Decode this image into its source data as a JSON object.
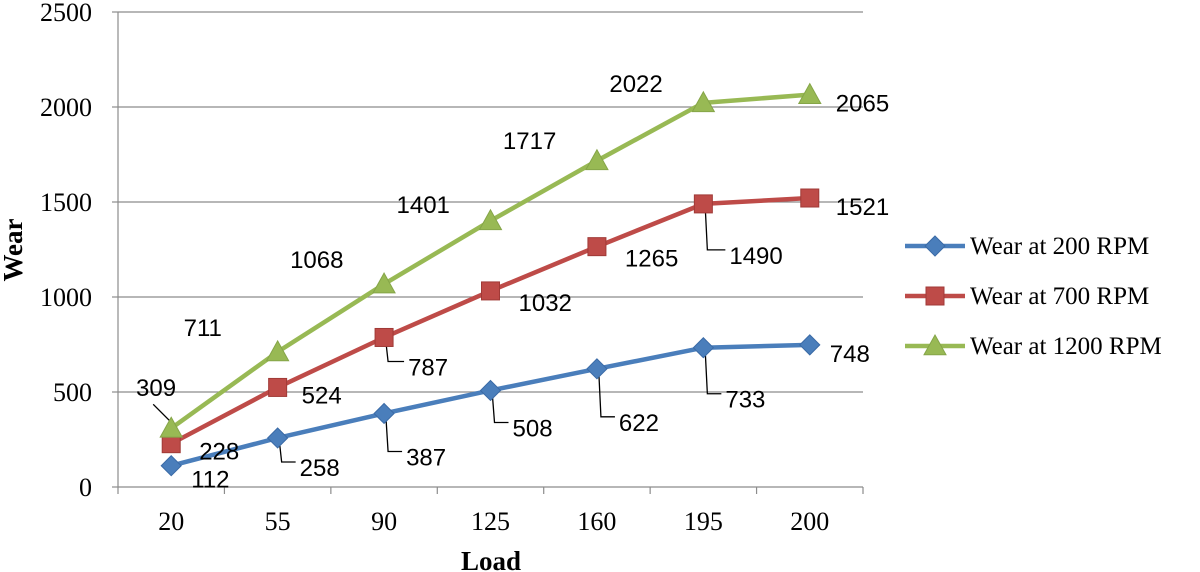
{
  "chart_data": {
    "type": "line",
    "title": "",
    "xlabel": "Load",
    "ylabel": "Wear",
    "categories": [
      "20",
      "55",
      "90",
      "125",
      "160",
      "195",
      "200"
    ],
    "ylim": [
      0,
      2500
    ],
    "yticks": [
      "0",
      "500",
      "1000",
      "1500",
      "2000",
      "2500"
    ],
    "grid": "horizontal",
    "legend_position": "right",
    "series": [
      {
        "name": "Wear at 200 RPM",
        "color": "#4a7ebb",
        "marker": "diamond",
        "values": [
          112,
          258,
          387,
          508,
          622,
          733,
          748
        ],
        "labels": [
          "112",
          "258",
          "387",
          "508",
          "622",
          "733",
          "748"
        ]
      },
      {
        "name": "Wear at 700 RPM",
        "color": "#be4b48",
        "marker": "square",
        "values": [
          228,
          524,
          787,
          1032,
          1265,
          1490,
          1521
        ],
        "labels": [
          "228",
          "524",
          "787",
          "1032",
          "1265",
          "1490",
          "1521"
        ]
      },
      {
        "name": "Wear at 1200 RPM",
        "color": "#98b954",
        "marker": "triangle",
        "values": [
          309,
          711,
          1068,
          1401,
          1717,
          2022,
          2065
        ],
        "labels": [
          "309",
          "711",
          "1068",
          "1401",
          "1717",
          "2022",
          "2065"
        ]
      }
    ]
  }
}
